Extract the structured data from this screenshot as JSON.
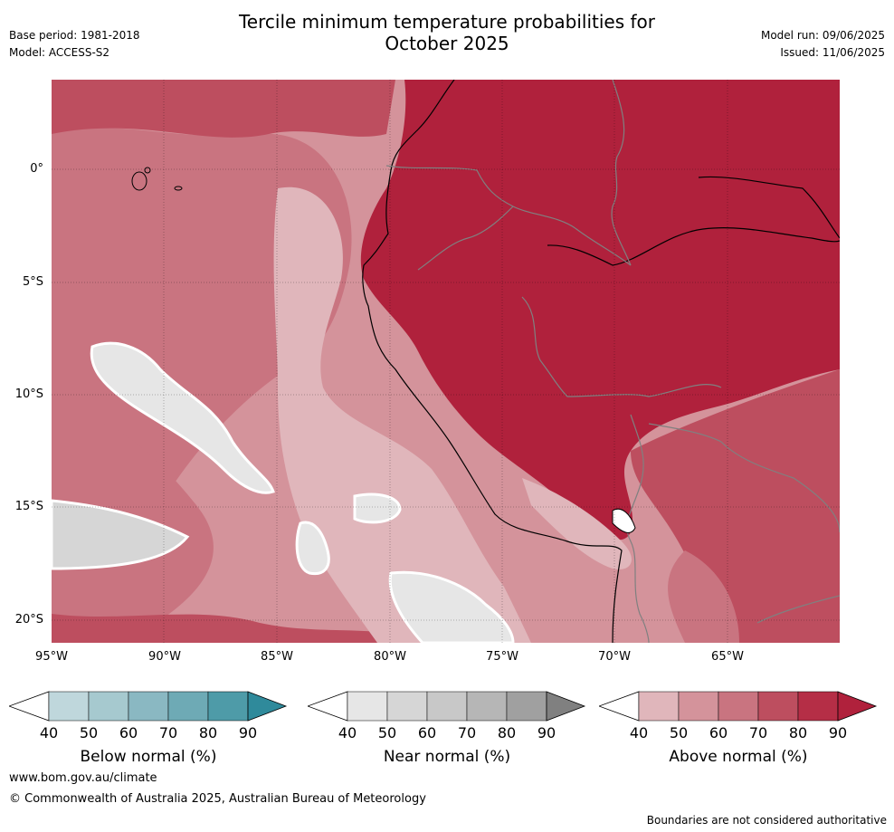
{
  "header": {
    "title_line1": "Tercile minimum temperature probabilities for",
    "title_line2": "October 2025",
    "base_period": "Base period: 1981-2018",
    "model": "Model: ACCESS-S2",
    "model_run": "Model run: 09/06/2025",
    "issued": "Issued: 11/06/2025"
  },
  "map": {
    "latitude_labels": [
      "0°",
      "5°S",
      "10°S",
      "15°S",
      "20°S"
    ],
    "longitude_labels": [
      "95°W",
      "90°W",
      "85°W",
      "80°W",
      "75°W",
      "70°W",
      "65°W"
    ],
    "colors": {
      "ocean_base": "#d4939b",
      "above_50": "#e0b6bb",
      "above_60": "#d4939b",
      "above_70": "#c97480",
      "above_80": "#bd4e5f",
      "above_90": "#b0213c",
      "near_40": "#e6e6e6",
      "near_50": "#d6d6d6",
      "coast": "#000000",
      "border": "#808080"
    }
  },
  "legends": [
    {
      "title": "Below normal (%)",
      "ticks": [
        "40",
        "50",
        "60",
        "70",
        "80",
        "90"
      ],
      "colors": [
        "#ffffff",
        "#bfd7dc",
        "#a6c9cf",
        "#8ab8c2",
        "#6eaab5",
        "#4e9ba8",
        "#2f8a9b"
      ]
    },
    {
      "title": "Near normal (%)",
      "ticks": [
        "40",
        "50",
        "60",
        "70",
        "80",
        "90"
      ],
      "colors": [
        "#ffffff",
        "#e6e6e6",
        "#d6d6d6",
        "#c8c8c8",
        "#b6b6b6",
        "#a0a0a0",
        "#808080"
      ]
    },
    {
      "title": "Above normal (%)",
      "ticks": [
        "40",
        "50",
        "60",
        "70",
        "80",
        "90"
      ],
      "colors": [
        "#ffffff",
        "#e0b6bb",
        "#d4939b",
        "#c97480",
        "#bd4e5f",
        "#b52e46",
        "#b0213c"
      ]
    }
  ],
  "footer": {
    "website": "www.bom.gov.au/climate",
    "copyright": "© Commonwealth of Australia 2025, Australian Bureau of Meteorology",
    "disclaimer": "Boundaries are not considered authoritative"
  }
}
